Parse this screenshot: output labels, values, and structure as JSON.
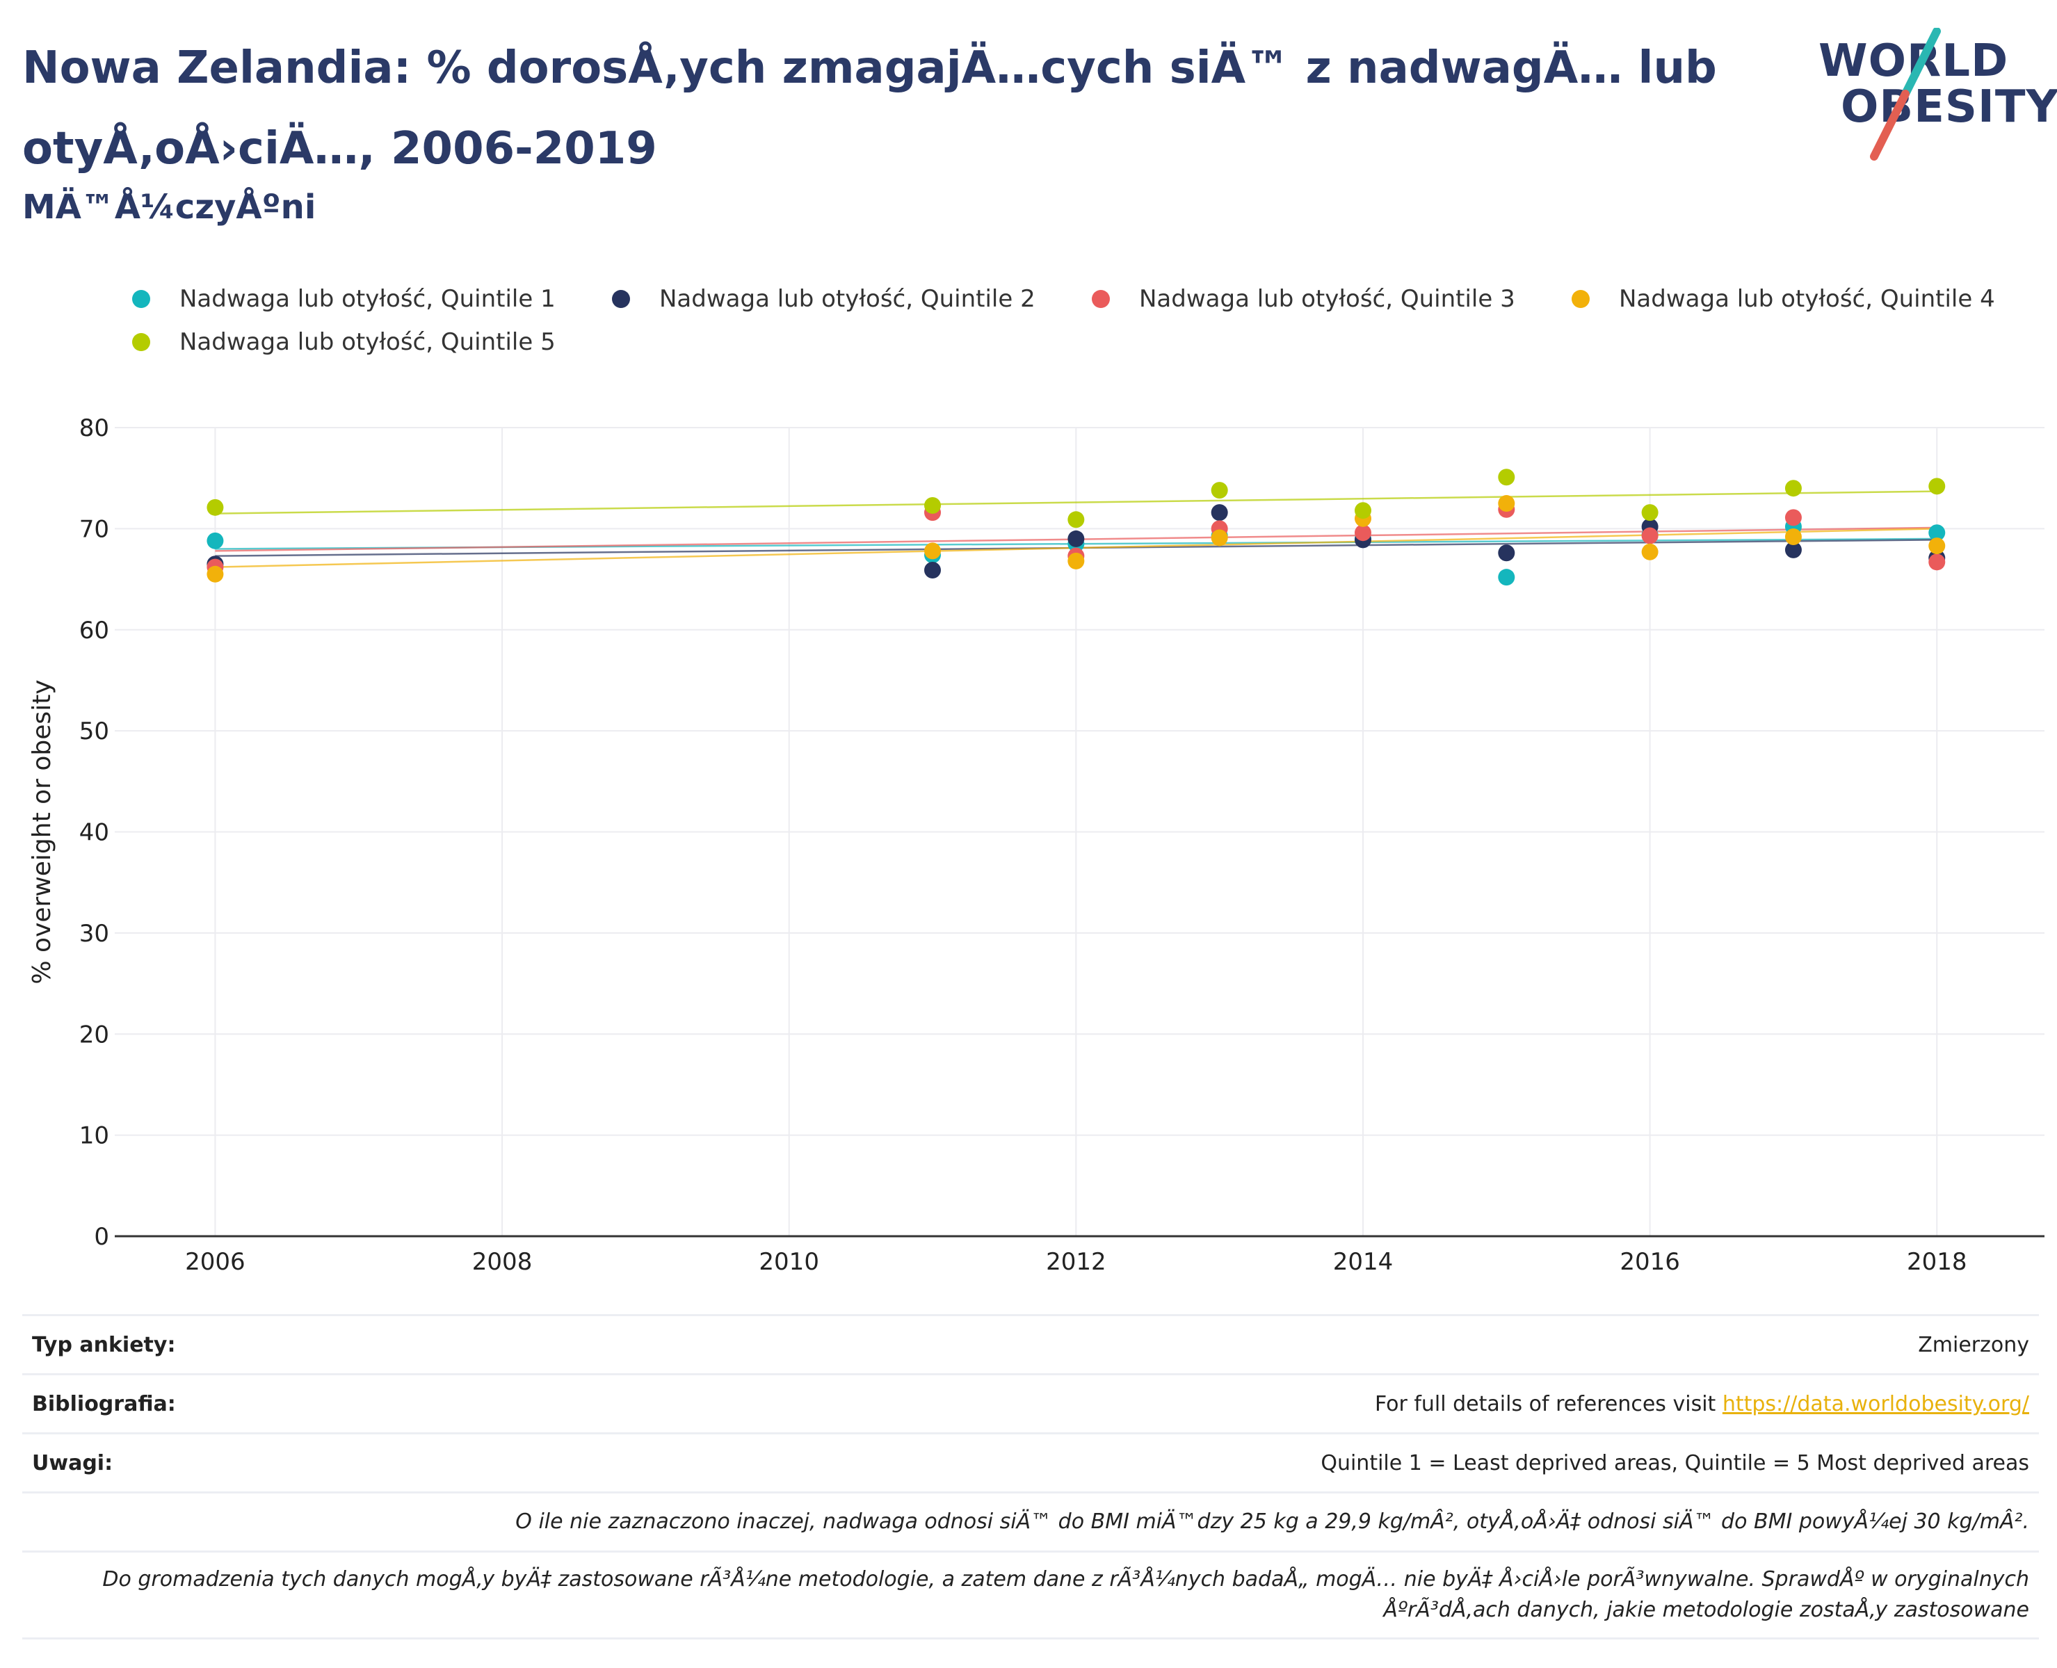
{
  "header": {
    "title": "Nowa Zelandia: % dorosÅ‚ych zmagajÄ…cych siÄ™ z nadwagÄ… lub otyÅ‚oÅ›ciÄ…, 2006-2019",
    "subtitle": "MÄ™Å¼czyÅºni"
  },
  "logo": {
    "line1": "WORLD",
    "line2": "OBESITY",
    "slash_color_top": "#2ab7b2",
    "slash_color_bottom": "#e35f52"
  },
  "chart_data": {
    "type": "scatter",
    "xlabel": "",
    "ylabel": "% overweight or obesity",
    "xlim": [
      2005.3,
      2018.75
    ],
    "ylim": [
      0,
      80
    ],
    "x_ticks": [
      2006,
      2008,
      2010,
      2012,
      2014,
      2016,
      2018
    ],
    "y_ticks": [
      0,
      10,
      20,
      30,
      40,
      50,
      60,
      70,
      80
    ],
    "grid": true,
    "legend_position": "top",
    "trendlines": true,
    "series": [
      {
        "name": "Nadwaga lub otyłość, Quintile 1",
        "color": "#14b6bd",
        "x": [
          2006,
          2011,
          2012,
          2013,
          2014,
          2015,
          2016,
          2017,
          2018
        ],
        "y": [
          68.8,
          67.4,
          68.5,
          69.3,
          69.0,
          65.2,
          69.4,
          70.2,
          69.6
        ],
        "trend": [
          68.0,
          69.0
        ]
      },
      {
        "name": "Nadwaga lub otyłość, Quintile 2",
        "color": "#26335e",
        "x": [
          2006,
          2011,
          2012,
          2013,
          2014,
          2015,
          2016,
          2017,
          2018
        ],
        "y": [
          66.5,
          65.9,
          69.0,
          71.6,
          68.9,
          67.6,
          70.2,
          67.9,
          67.1
        ],
        "trend": [
          67.3,
          68.9
        ]
      },
      {
        "name": "Nadwaga lub otyłość, Quintile 3",
        "color": "#ea5b5b",
        "x": [
          2006,
          2011,
          2012,
          2013,
          2014,
          2015,
          2016,
          2017,
          2018
        ],
        "y": [
          66.2,
          71.6,
          67.3,
          70.0,
          69.6,
          71.9,
          69.3,
          71.1,
          66.7
        ],
        "trend": [
          67.8,
          70.1
        ]
      },
      {
        "name": "Nadwaga lub otyłość, Quintile 4",
        "color": "#f2b10a",
        "x": [
          2006,
          2011,
          2012,
          2013,
          2014,
          2015,
          2016,
          2017,
          2018
        ],
        "y": [
          65.5,
          67.8,
          66.8,
          69.1,
          71.0,
          72.5,
          67.7,
          69.2,
          68.3
        ],
        "trend": [
          66.2,
          70.0
        ]
      },
      {
        "name": "Nadwaga lub otyłość, Quintile 5",
        "color": "#b4cc00",
        "x": [
          2006,
          2011,
          2012,
          2013,
          2014,
          2015,
          2016,
          2017,
          2018
        ],
        "y": [
          72.1,
          72.3,
          70.9,
          73.8,
          71.8,
          75.1,
          71.6,
          74.0,
          74.2
        ],
        "trend": [
          71.5,
          73.7
        ]
      }
    ]
  },
  "footer": {
    "rows": [
      {
        "label": "Typ ankiety:",
        "value": "Zmierzony"
      },
      {
        "label": "Bibliografia:",
        "value": "For full details of references visit ",
        "link": "https://data.worldobesity.org/"
      },
      {
        "label": "Uwagi:",
        "value": "Quintile 1 = Least deprived areas, Quintile = 5 Most deprived areas"
      }
    ],
    "note1": "O ile nie zaznaczono inaczej, nadwaga odnosi siÄ™ do BMI miÄ™dzy 25 kg a 29,9 kg/mÂ², otyÅ‚oÅ›Ä‡ odnosi siÄ™ do BMI powyÅ¼ej 30 kg/mÂ².",
    "note2a": "Do gromadzenia tych danych mogÅ‚y byÄ‡ zastosowane rÃ³Å¼ne metodologie, a zatem dane z rÃ³Å¼nych badaÅ„ mogÄ… nie byÄ‡ Å›ciÅ›le porÃ³wnywalne. SprawdÅº w oryginalnych",
    "note2b": "ÅºrÃ³dÅ‚ach danych, jakie metodologie zostaÅ‚y zastosowane"
  }
}
